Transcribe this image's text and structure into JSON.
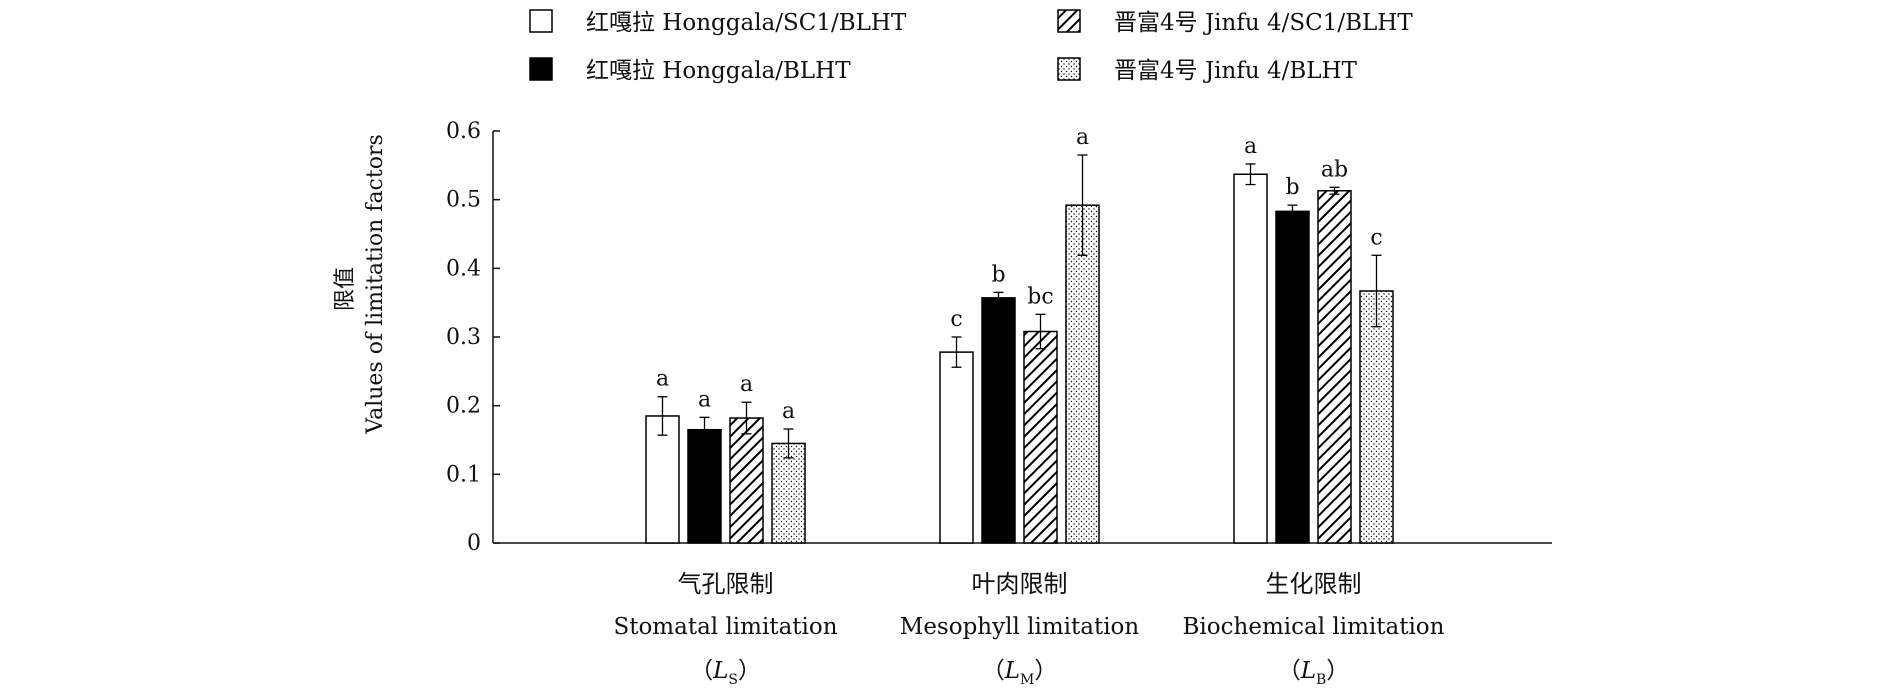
{
  "chart_data": {
    "type": "bar",
    "title": "",
    "ylabel_cn": "限值",
    "ylabel": "Values of limitation factors",
    "ylim": [
      0,
      0.6
    ],
    "yticks": [
      "0",
      "0.1",
      "0.2",
      "0.3",
      "0.4",
      "0.5",
      "0.6"
    ],
    "grid": false,
    "legend_position": "top-center",
    "categories": [
      {
        "cn": "气孔限制",
        "en": "Stomatal limitation",
        "sym": "L",
        "sub": "S"
      },
      {
        "cn": "叶肉限制",
        "en": "Mesophyll limitation",
        "sym": "L",
        "sub": "M"
      },
      {
        "cn": "生化限制",
        "en": "Biochemical limitation",
        "sym": "L",
        "sub": "B"
      }
    ],
    "series": [
      {
        "name": "红嘎拉 Honggala/SC1/BLHT",
        "fill": "white",
        "values": [
          0.185,
          0.278,
          0.537
        ],
        "errors": [
          0.028,
          0.022,
          0.015
        ],
        "letters": [
          "a",
          "c",
          "a"
        ]
      },
      {
        "name": "红嘎拉 Honggala/BLHT",
        "fill": "black",
        "values": [
          0.165,
          0.357,
          0.483
        ],
        "errors": [
          0.018,
          0.008,
          0.009
        ],
        "letters": [
          "a",
          "b",
          "b"
        ]
      },
      {
        "name": "晋富4号 Jinfu 4/SC1/BLHT",
        "fill": "hatch",
        "values": [
          0.182,
          0.308,
          0.513
        ],
        "errors": [
          0.023,
          0.025,
          0.005
        ],
        "letters": [
          "a",
          "bc",
          "ab"
        ]
      },
      {
        "name": "晋富4号 Jinfu 4/BLHT",
        "fill": "dots",
        "values": [
          0.145,
          0.492,
          0.367
        ],
        "errors": [
          0.021,
          0.073,
          0.052
        ],
        "letters": [
          "a",
          "a",
          "c"
        ]
      }
    ]
  },
  "colors": {
    "axis": "#111111",
    "bar_black": "#000000",
    "bar_white": "#ffffff"
  }
}
